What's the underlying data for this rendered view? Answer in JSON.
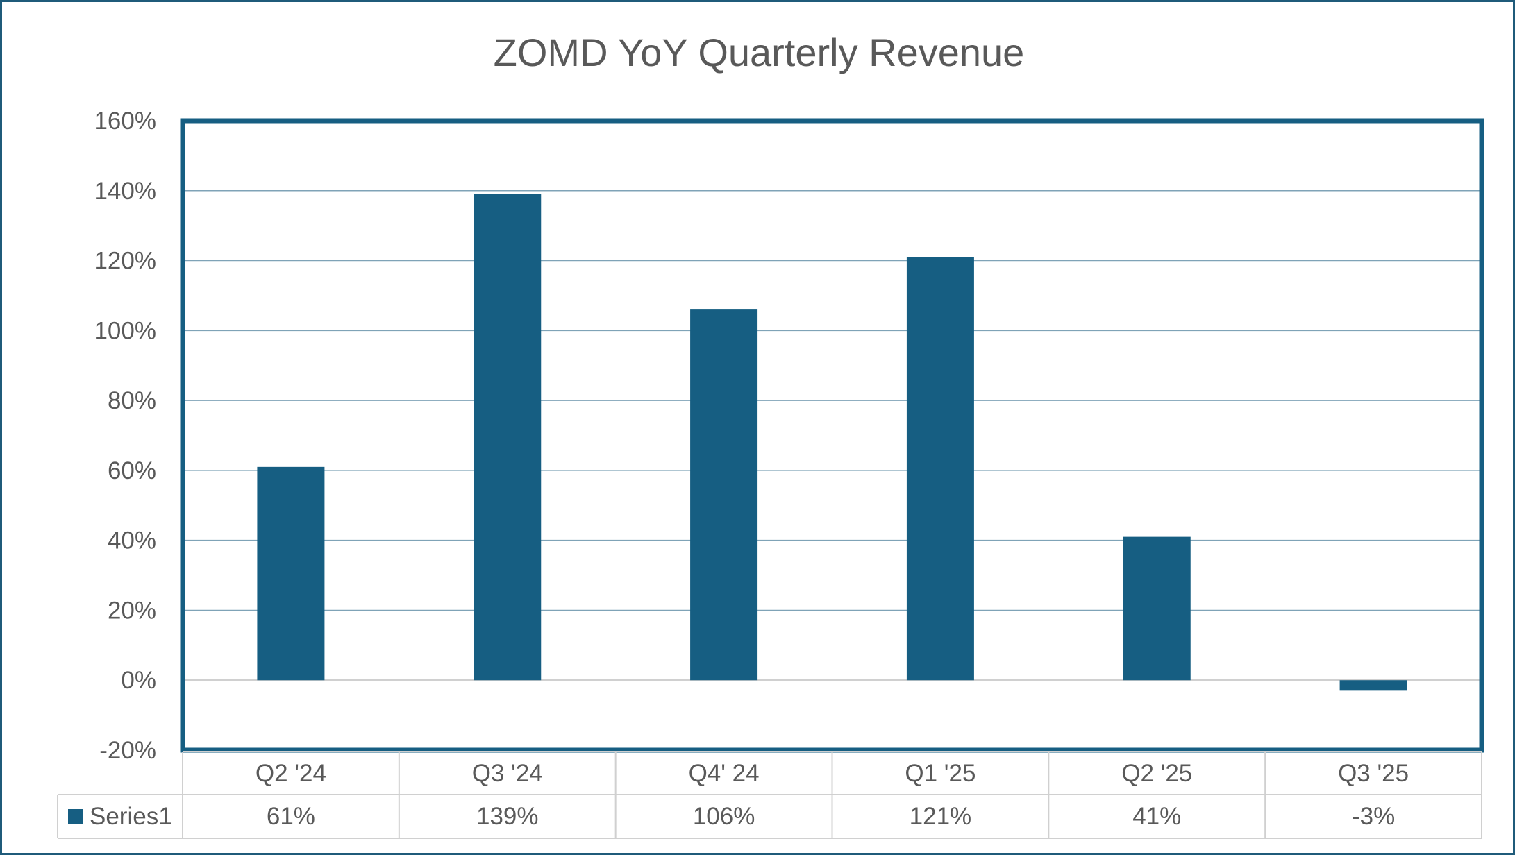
{
  "chart_data": {
    "type": "bar",
    "title": "ZOMD YoY Quarterly Revenue",
    "categories": [
      "Q2 '24",
      "Q3 '24",
      "Q4' 24",
      "Q1 '25",
      "Q2 '25",
      "Q3 '25"
    ],
    "series": [
      {
        "name": "Series1",
        "values": [
          61,
          139,
          106,
          121,
          41,
          -3
        ],
        "labels": [
          "61%",
          "139%",
          "106%",
          "121%",
          "41%",
          "-3%"
        ]
      }
    ],
    "y_ticks": [
      -20,
      0,
      20,
      40,
      60,
      80,
      100,
      120,
      140,
      160
    ],
    "y_tick_labels": [
      "-20%",
      "0%",
      "20%",
      "40%",
      "60%",
      "80%",
      "100%",
      "120%",
      "140%",
      "160%"
    ],
    "ylim": [
      -20,
      160
    ],
    "xlabel": "",
    "ylabel": "",
    "grid": true,
    "data_table": true,
    "legend_position": "data-table-left"
  },
  "colors": {
    "bar": "#165e82",
    "plot_border": "#165e82",
    "gridline": "#7fa3b7",
    "zero_line": "#d0d0d0",
    "table_line": "#d0d0d0",
    "text": "#595959",
    "frame": "#1f5b7a"
  }
}
